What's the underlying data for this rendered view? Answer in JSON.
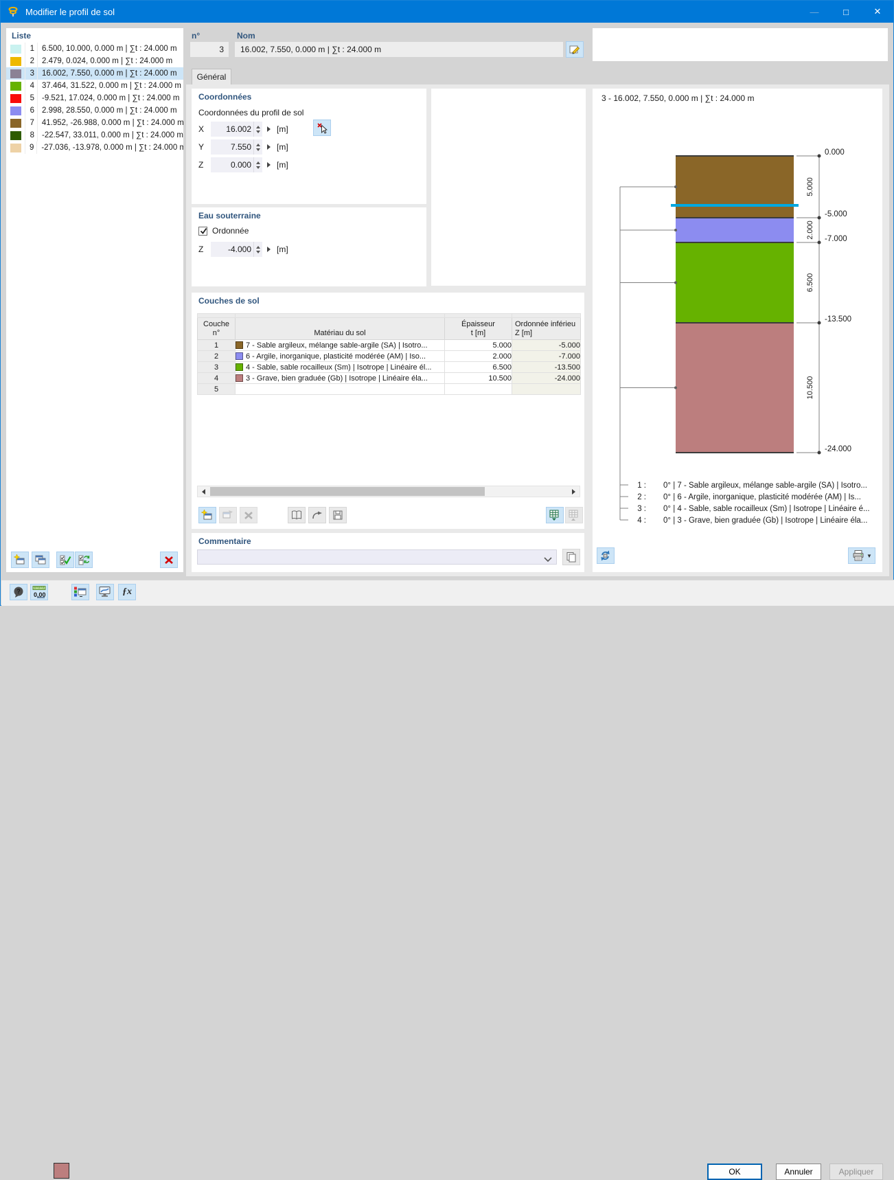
{
  "window": {
    "title": "Modifier le profil de sol"
  },
  "liste": {
    "label": "Liste",
    "items": [
      {
        "num": "1",
        "color": "#c9f2f0",
        "text": "6.500, 10.000, 0.000 m | ∑t : 24.000 m",
        "selected": false
      },
      {
        "num": "2",
        "color": "#eeb900",
        "text": "2.479, 0.024, 0.000 m | ∑t : 24.000 m",
        "selected": false
      },
      {
        "num": "3",
        "color": "#8b8195",
        "text": "16.002, 7.550, 0.000 m | ∑t : 24.000 m",
        "selected": true
      },
      {
        "num": "4",
        "color": "#66b200",
        "text": "37.464, 31.522, 0.000 m | ∑t : 24.000 m",
        "selected": false
      },
      {
        "num": "5",
        "color": "#f90b0b",
        "text": "-9.521, 17.024, 0.000 m | ∑t : 24.000 m",
        "selected": false
      },
      {
        "num": "6",
        "color": "#8c8cf0",
        "text": "2.998, 28.550, 0.000 m | ∑t : 24.000 m",
        "selected": false
      },
      {
        "num": "7",
        "color": "#8a6628",
        "text": "41.952, -26.988, 0.000 m | ∑t : 24.000 m",
        "selected": false
      },
      {
        "num": "8",
        "color": "#2f5c00",
        "text": "-22.547, 33.011, 0.000 m | ∑t : 24.000 m",
        "selected": false
      },
      {
        "num": "9",
        "color": "#eed2a6",
        "text": "-27.036, -13.978, 0.000 m | ∑t : 24.000 m",
        "selected": false
      }
    ]
  },
  "header": {
    "num_label": "n°",
    "num_value": "3",
    "name_label": "Nom",
    "name_value": "16.002, 7.550, 0.000 m | ∑t : 24.000 m"
  },
  "tab": {
    "general": "Général"
  },
  "coordinates": {
    "title": "Coordonnées",
    "subtitle": "Coordonnées du profil de sol",
    "x": {
      "label": "X",
      "value": "16.002",
      "unit": "[m]"
    },
    "y": {
      "label": "Y",
      "value": "7.550",
      "unit": "[m]"
    },
    "z": {
      "label": "Z",
      "value": "0.000",
      "unit": "[m]"
    }
  },
  "groundwater": {
    "title": "Eau souterraine",
    "option": "Ordonnée",
    "checked": true,
    "z": {
      "label": "Z",
      "value": "-4.000",
      "unit": "[m]"
    }
  },
  "soil_layers": {
    "title": "Couches de sol",
    "col_num_l1": "Couche",
    "col_num_l2": "n°",
    "col_material": "Matériau du sol",
    "col_th_l1": "Épaisseur",
    "col_th_l2": "t [m]",
    "col_low_l1": "Ordonnée inférieu",
    "col_low_l2": "Z [m]",
    "rows": [
      {
        "num": "1",
        "color": "#8a6628",
        "material": "7 - Sable argileux, mélange sable-argile (SA) | Isotro...",
        "thickness": "5.000",
        "lower": "-5.000"
      },
      {
        "num": "2",
        "color": "#8c8cf0",
        "material": "6 - Argile, inorganique, plasticité modérée (AM) | Iso...",
        "thickness": "2.000",
        "lower": "-7.000"
      },
      {
        "num": "3",
        "color": "#66b200",
        "material": "4 - Sable, sable rocailleux (Sm) | Isotrope | Linéaire él...",
        "thickness": "6.500",
        "lower": "-13.500"
      },
      {
        "num": "4",
        "color": "#bc7e7e",
        "material": "3 - Grave, bien graduée (Gb) | Isotrope | Linéaire éla...",
        "thickness": "10.500",
        "lower": "-24.000"
      },
      {
        "num": "5",
        "color": null,
        "material": "",
        "thickness": "",
        "lower": ""
      }
    ]
  },
  "comment": {
    "title": "Commentaire",
    "value": ""
  },
  "profile": {
    "title": "3 - 16.002, 7.550, 0.000 m | ∑t : 24.000 m",
    "type": "soil-column",
    "top_label": "0.000",
    "water": {
      "z": -4,
      "color": "#00a8e0"
    },
    "layers": [
      {
        "index_label": "1 :",
        "color": "#8a6628",
        "thickness": 5,
        "thickness_label": "5.000",
        "bottom_label": "-5.000",
        "legend": "0° | 7 - Sable argileux, mélange sable-argile (SA) | Isotro..."
      },
      {
        "index_label": "2 :",
        "color": "#8c8cf0",
        "thickness": 2,
        "thickness_label": "2.000",
        "bottom_label": "-7.000",
        "legend": "0° | 6 - Argile, inorganique, plasticité modérée (AM) | Is..."
      },
      {
        "index_label": "3 :",
        "color": "#66b200",
        "thickness": 6.5,
        "thickness_label": "6.500",
        "bottom_label": "-13.500",
        "legend": "0° | 4 - Sable, sable rocailleux (Sm) | Isotrope | Linéaire é..."
      },
      {
        "index_label": "4 :",
        "color": "#bc7e7e",
        "thickness": 10.5,
        "thickness_label": "10.500",
        "bottom_label": "-24.000",
        "legend": "0° | 3 - Grave, bien graduée (Gb) | Isotrope | Linéaire éla..."
      }
    ]
  },
  "buttons": {
    "ok": "OK",
    "cancel": "Annuler",
    "apply": "Appliquer"
  }
}
